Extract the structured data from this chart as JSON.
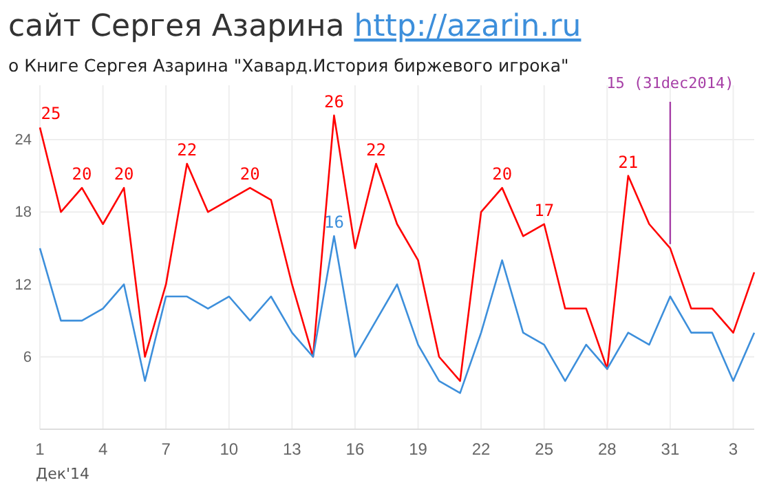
{
  "chart_data": {
    "type": "line",
    "title": "сайт Сергея Азарина http://azarin.ru",
    "subtitle": "о Книге Сергея Азарина \"Хавард.История биржевого игрока\"",
    "xlabel": "Дек'14",
    "x": [
      "2014-12-01",
      "2014-12-02",
      "2014-12-03",
      "2014-12-04",
      "2014-12-05",
      "2014-12-06",
      "2014-12-07",
      "2014-12-08",
      "2014-12-09",
      "2014-12-10",
      "2014-12-11",
      "2014-12-12",
      "2014-12-13",
      "2014-12-14",
      "2014-12-15",
      "2014-12-16",
      "2014-12-17",
      "2014-12-18",
      "2014-12-19",
      "2014-12-20",
      "2014-12-21",
      "2014-12-22",
      "2014-12-23",
      "2014-12-24",
      "2014-12-25",
      "2014-12-26",
      "2014-12-27",
      "2014-12-28",
      "2014-12-29",
      "2014-12-30",
      "2014-12-31",
      "2015-01-01",
      "2015-01-02",
      "2015-01-03",
      "2015-01-04"
    ],
    "series": [
      {
        "color": "#ff0000",
        "values": [
          25,
          18,
          20,
          17,
          20,
          6,
          12,
          22,
          18,
          19,
          20,
          19,
          12,
          6,
          26,
          15,
          22,
          17,
          14,
          6,
          4,
          18,
          20,
          16,
          17,
          10,
          10,
          5,
          21,
          17,
          15,
          10,
          10,
          8,
          13
        ],
        "value_labels": [
          "25",
          null,
          "20",
          null,
          "20",
          null,
          null,
          "22",
          null,
          null,
          "20",
          null,
          null,
          null,
          "26",
          null,
          "22",
          null,
          null,
          null,
          null,
          null,
          "20",
          null,
          "17",
          null,
          null,
          null,
          "21",
          null,
          null,
          null,
          null,
          null,
          null
        ]
      },
      {
        "color": "#3d8fdb",
        "values": [
          15,
          9,
          9,
          10,
          12,
          4,
          11,
          11,
          10,
          11,
          9,
          11,
          8,
          6,
          16,
          6,
          9,
          12,
          7,
          4,
          3,
          8,
          14,
          8,
          7,
          4,
          7,
          5,
          8,
          7,
          11,
          8,
          8,
          4,
          8
        ],
        "value_labels": [
          null,
          null,
          null,
          null,
          null,
          null,
          null,
          null,
          null,
          null,
          null,
          null,
          null,
          null,
          "16",
          null,
          null,
          null,
          null,
          null,
          null,
          null,
          null,
          null,
          null,
          null,
          null,
          null,
          null,
          null,
          null,
          null,
          null,
          null,
          null
        ]
      }
    ],
    "annotations": [
      {
        "text": "15 (31dec2014)",
        "x": "2014-12-31",
        "y": 15
      }
    ],
    "xlim": [
      "2014-12-01",
      "2015-01-04"
    ],
    "xticks": [
      {
        "value": "2014-12-01",
        "label": "1"
      },
      {
        "value": "2014-12-04",
        "label": "4"
      },
      {
        "value": "2014-12-07",
        "label": "7"
      },
      {
        "value": "2014-12-10",
        "label": "10"
      },
      {
        "value": "2014-12-13",
        "label": "13"
      },
      {
        "value": "2014-12-16",
        "label": "16"
      },
      {
        "value": "2014-12-19",
        "label": "19"
      },
      {
        "value": "2014-12-22",
        "label": "22"
      },
      {
        "value": "2014-12-25",
        "label": "25"
      },
      {
        "value": "2014-12-28",
        "label": "28"
      },
      {
        "value": "2014-12-31",
        "label": "31"
      },
      {
        "value": "2015-01-03",
        "label": "3"
      }
    ],
    "ylim": [
      0,
      28.5
    ],
    "yticks": [
      6,
      12,
      18,
      24
    ],
    "grid": true,
    "marker": "none",
    "line_style": "solid"
  }
}
